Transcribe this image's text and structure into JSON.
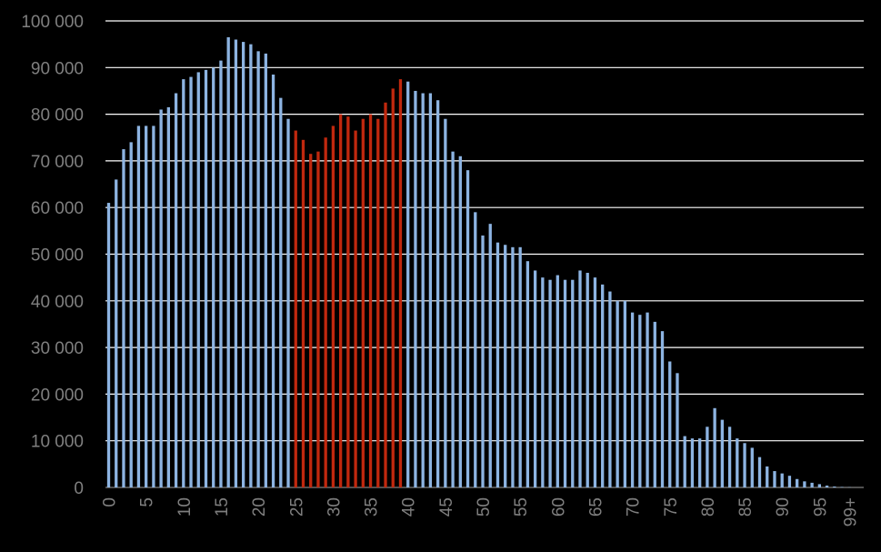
{
  "chart_data": {
    "type": "bar",
    "title": "",
    "xlabel": "",
    "ylabel": "",
    "ylim": [
      0,
      100000
    ],
    "y_ticks": [
      "0",
      "10 000",
      "20 000",
      "30 000",
      "40 000",
      "50 000",
      "60 000",
      "70 000",
      "80 000",
      "90 000",
      "100 000"
    ],
    "x_tick_labels": [
      "0",
      "5",
      "10",
      "15",
      "20",
      "25",
      "30",
      "35",
      "40",
      "45",
      "50",
      "55",
      "60",
      "65",
      "70",
      "75",
      "80",
      "85",
      "90",
      "95",
      "99+"
    ],
    "grid": true,
    "colors": {
      "default": "#8db4e2",
      "highlight": "#c0280e",
      "grid": "#ffffff",
      "background": "#000000"
    },
    "highlight_range": [
      "25",
      "39"
    ],
    "categories": [
      "0",
      "1",
      "2",
      "3",
      "4",
      "5",
      "6",
      "7",
      "8",
      "9",
      "10",
      "11",
      "12",
      "13",
      "14",
      "15",
      "16",
      "17",
      "18",
      "19",
      "20",
      "21",
      "22",
      "23",
      "24",
      "25",
      "26",
      "27",
      "28",
      "29",
      "30",
      "31",
      "32",
      "33",
      "34",
      "35",
      "36",
      "37",
      "38",
      "39",
      "40",
      "41",
      "42",
      "43",
      "44",
      "45",
      "46",
      "47",
      "48",
      "49",
      "50",
      "51",
      "52",
      "53",
      "54",
      "55",
      "56",
      "57",
      "58",
      "59",
      "60",
      "61",
      "62",
      "63",
      "64",
      "65",
      "66",
      "67",
      "68",
      "69",
      "70",
      "71",
      "72",
      "73",
      "74",
      "75",
      "76",
      "77",
      "78",
      "79",
      "80",
      "81",
      "82",
      "83",
      "84",
      "85",
      "86",
      "87",
      "88",
      "89",
      "90",
      "91",
      "92",
      "93",
      "94",
      "95",
      "96",
      "97",
      "98",
      "99+"
    ],
    "values": [
      61000,
      66000,
      72500,
      74000,
      77500,
      77500,
      77500,
      81000,
      81500,
      84500,
      87500,
      88000,
      89000,
      89500,
      90000,
      91500,
      96500,
      96000,
      95500,
      95000,
      93500,
      93000,
      88500,
      83500,
      79000,
      76500,
      74500,
      71500,
      72000,
      75000,
      77500,
      80000,
      79500,
      76500,
      79000,
      80000,
      79000,
      82500,
      85500,
      87500,
      87000,
      85000,
      84500,
      84500,
      83000,
      79000,
      72000,
      71000,
      68000,
      59000,
      54000,
      56500,
      52500,
      52000,
      51500,
      51500,
      48500,
      46500,
      45000,
      44500,
      45500,
      44500,
      44500,
      46500,
      46000,
      45000,
      43500,
      42000,
      40000,
      40000,
      37500,
      37000,
      37500,
      35500,
      33500,
      27000,
      24500,
      11000,
      10500,
      10500,
      13000,
      17000,
      14500,
      13000,
      10500,
      9500,
      8500,
      6500,
      4500,
      3500,
      3000,
      2500,
      1800,
      1300,
      1000,
      700,
      400,
      200,
      100,
      50
    ]
  }
}
